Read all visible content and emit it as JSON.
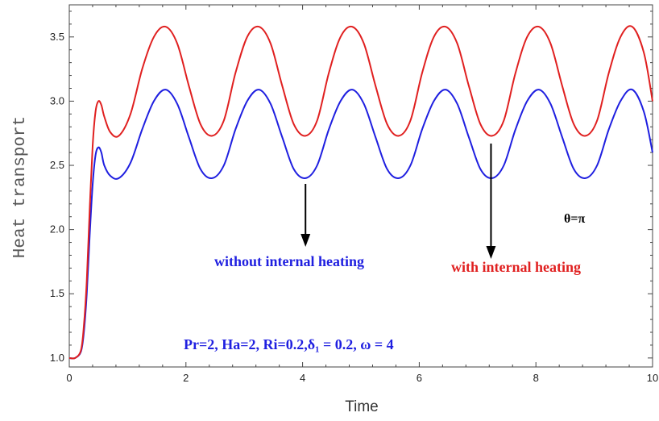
{
  "chart_data": {
    "type": "line",
    "xlabel": "Time",
    "ylabel": "Heat transport",
    "xlim": [
      0,
      10
    ],
    "ylim": [
      0.93,
      3.75
    ],
    "x_ticks": [
      "0",
      "2",
      "4",
      "6",
      "8",
      "10"
    ],
    "y_ticks": [
      "1.0",
      "1.5",
      "2.0",
      "2.5",
      "3.0",
      "3.5"
    ],
    "grid": false,
    "series": [
      {
        "name": "without internal heating",
        "color": "#1f1fe0",
        "x": [
          0,
          0.1,
          0.2,
          0.25,
          0.3,
          0.35,
          0.4,
          0.45,
          0.5,
          0.55,
          0.6,
          0.7,
          0.85,
          1.05,
          1.25,
          1.45,
          1.65,
          1.85,
          2.05,
          2.25,
          2.45,
          2.65,
          2.85,
          3.05,
          3.25,
          3.45,
          3.65,
          3.85,
          4.05,
          4.25,
          4.45,
          4.65,
          4.85,
          5.05,
          5.25,
          5.45,
          5.65,
          5.85,
          6.05,
          6.25,
          6.45,
          6.65,
          6.85,
          7.05,
          7.25,
          7.45,
          7.65,
          7.85,
          8.05,
          8.25,
          8.45,
          8.65,
          8.85,
          9.05,
          9.25,
          9.45,
          9.65,
          9.85,
          10
        ],
        "y": [
          1.0,
          1.0,
          1.05,
          1.2,
          1.5,
          1.95,
          2.35,
          2.58,
          2.64,
          2.6,
          2.5,
          2.42,
          2.4,
          2.52,
          2.78,
          3.0,
          3.09,
          2.98,
          2.72,
          2.47,
          2.4,
          2.5,
          2.78,
          3.0,
          3.09,
          2.98,
          2.72,
          2.47,
          2.4,
          2.5,
          2.78,
          3.0,
          3.09,
          2.98,
          2.72,
          2.47,
          2.4,
          2.5,
          2.78,
          3.0,
          3.09,
          2.98,
          2.72,
          2.47,
          2.4,
          2.5,
          2.78,
          3.0,
          3.09,
          2.98,
          2.72,
          2.47,
          2.4,
          2.5,
          2.78,
          3.0,
          3.09,
          2.92,
          2.6
        ]
      },
      {
        "name": "with internal heating",
        "color": "#e02020",
        "x": [
          0,
          0.1,
          0.2,
          0.25,
          0.3,
          0.35,
          0.4,
          0.45,
          0.5,
          0.55,
          0.6,
          0.7,
          0.85,
          1.05,
          1.25,
          1.45,
          1.65,
          1.85,
          2.05,
          2.25,
          2.45,
          2.65,
          2.85,
          3.05,
          3.25,
          3.45,
          3.65,
          3.85,
          4.05,
          4.25,
          4.45,
          4.65,
          4.85,
          5.05,
          5.25,
          5.45,
          5.65,
          5.85,
          6.05,
          6.25,
          6.45,
          6.65,
          6.85,
          7.05,
          7.25,
          7.45,
          7.65,
          7.85,
          8.05,
          8.25,
          8.45,
          8.65,
          8.85,
          9.05,
          9.25,
          9.45,
          9.65,
          9.85,
          10
        ],
        "y": [
          1.0,
          1.0,
          1.06,
          1.25,
          1.6,
          2.15,
          2.65,
          2.92,
          3.0,
          2.97,
          2.88,
          2.76,
          2.73,
          2.9,
          3.25,
          3.5,
          3.58,
          3.45,
          3.12,
          2.82,
          2.73,
          2.85,
          3.22,
          3.5,
          3.58,
          3.45,
          3.12,
          2.82,
          2.73,
          2.85,
          3.22,
          3.5,
          3.58,
          3.45,
          3.12,
          2.82,
          2.73,
          2.85,
          3.22,
          3.5,
          3.58,
          3.45,
          3.12,
          2.82,
          2.73,
          2.85,
          3.22,
          3.5,
          3.58,
          3.45,
          3.12,
          2.82,
          2.73,
          2.85,
          3.22,
          3.5,
          3.58,
          3.38,
          3.0
        ]
      }
    ],
    "annotations": {
      "theta": "θ=π",
      "without": "without internal heating",
      "with": "with internal heating",
      "params": "Pr=2, Ha=2, Ri=0.2,δ₁ = 0.2, ω = 4"
    }
  }
}
